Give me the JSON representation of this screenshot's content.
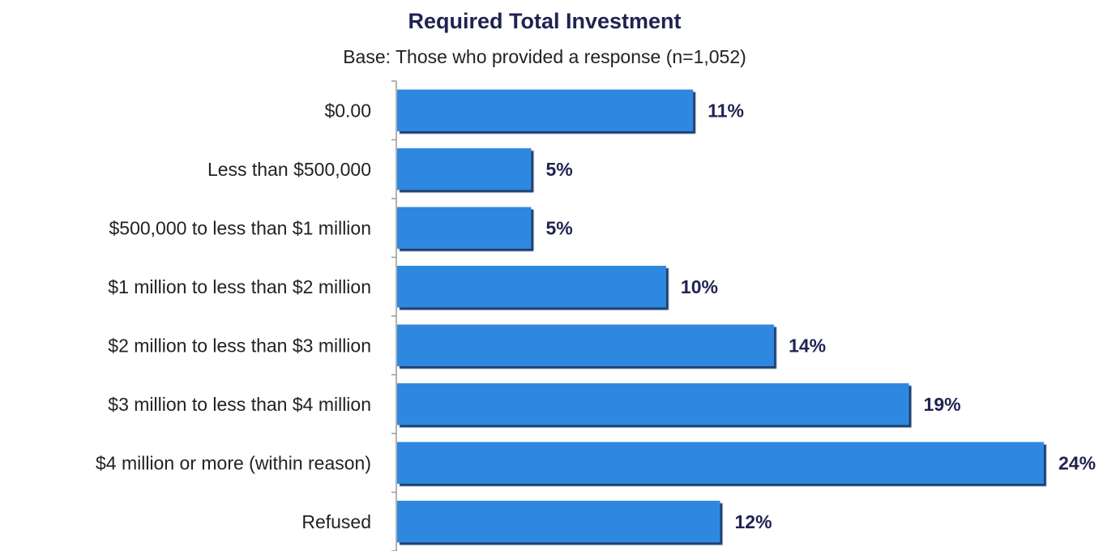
{
  "chart_data": {
    "type": "bar",
    "orientation": "horizontal",
    "title": "Required Total Investment",
    "subtitle": "Base: Those who provided a response (n=1,052)",
    "categories": [
      "$0.00",
      "Less than $500,000",
      "$500,000 to less than $1 million",
      "$1 million to less than $2 million",
      "$2 million to less than $3 million",
      "$3 million to less than $4 million",
      "$4 million or more (within reason)",
      "Refused"
    ],
    "values": [
      11,
      5,
      5,
      10,
      14,
      19,
      24,
      12
    ],
    "value_labels": [
      "11%",
      "5%",
      "5%",
      "10%",
      "14%",
      "19%",
      "24%",
      "12%"
    ],
    "color": "#2f88e0"
  }
}
